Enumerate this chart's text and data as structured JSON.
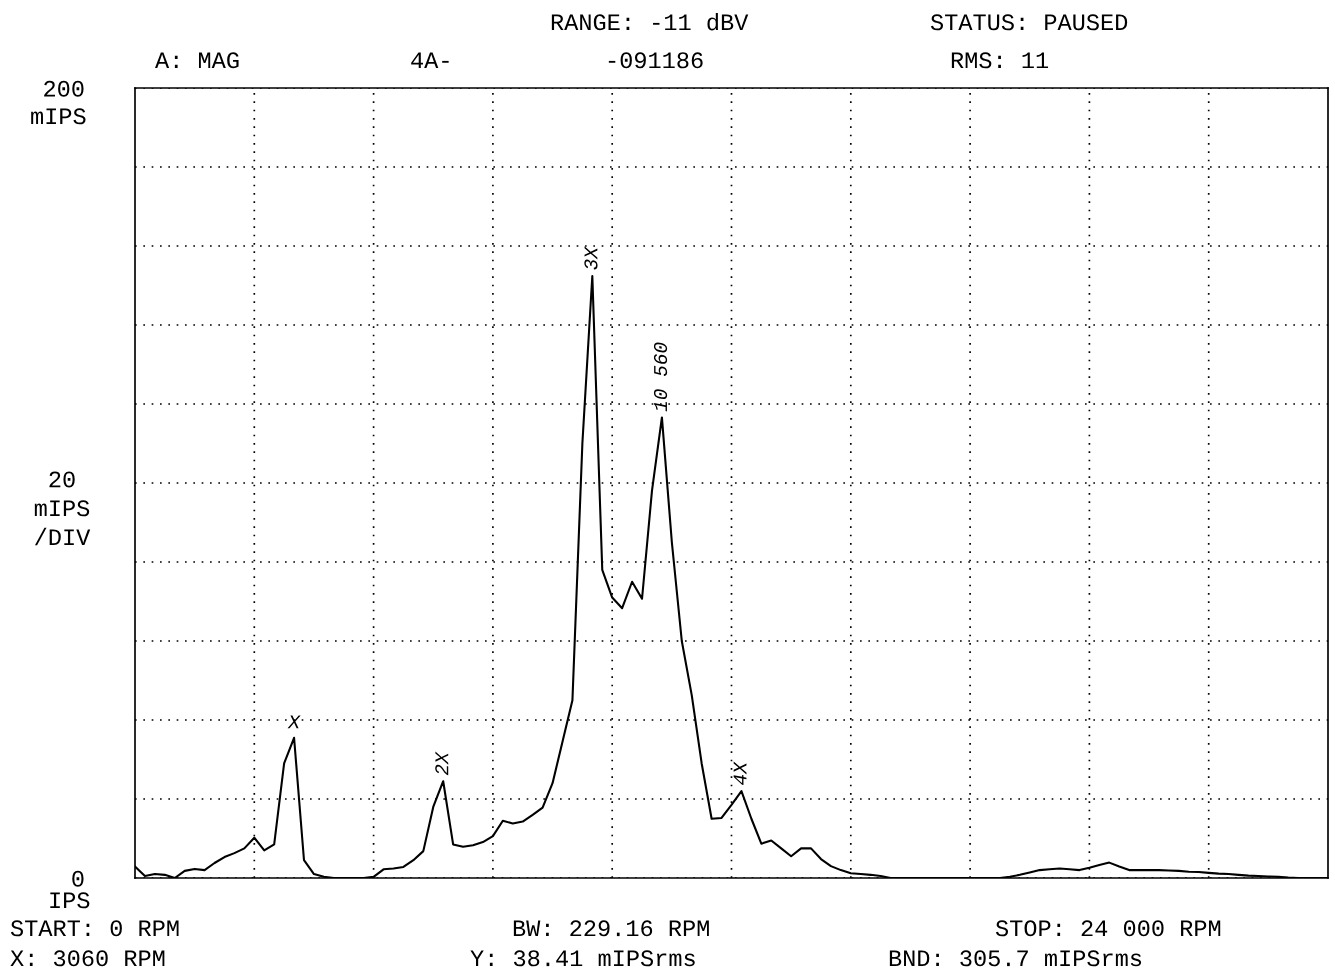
{
  "chart_data": {
    "type": "line",
    "ylabel": "20\nmIPS\n/DIV",
    "categories": [
      null,
      null,
      null,
      null,
      null,
      null,
      null,
      null,
      null,
      null,
      null,
      null,
      null,
      null,
      null,
      null,
      null,
      null,
      null,
      null,
      null,
      null,
      null,
      null,
      null,
      null,
      null,
      null,
      null,
      null,
      null,
      null,
      null,
      null,
      null,
      null,
      null,
      null,
      null,
      null,
      null,
      null,
      null,
      null,
      null,
      null,
      null,
      null,
      null,
      null,
      null,
      null,
      null,
      null,
      null,
      null,
      null,
      null,
      null,
      null,
      null,
      null,
      null,
      null,
      null,
      null,
      null,
      null,
      null,
      null,
      null,
      null,
      null,
      null,
      null,
      null,
      null,
      null,
      null,
      null,
      null,
      null,
      null,
      null,
      null,
      null,
      null,
      null,
      null,
      null,
      null,
      null,
      null,
      null,
      null,
      null,
      null,
      null,
      null,
      null,
      null,
      null,
      null,
      null,
      null,
      null,
      null,
      null,
      null,
      null,
      null,
      null,
      null,
      null,
      null,
      null,
      null,
      null,
      null,
      null,
      null
    ],
    "series": [
      {
        "color": "#000000",
        "values": [
          2.9,
          0.5,
          1.0,
          0.8,
          0,
          1.8,
          2.3,
          2.0,
          3.8,
          5.3,
          6.3,
          7.5,
          10.2,
          7.0,
          8.5,
          29,
          35.5,
          4.5,
          1.0,
          0.3,
          0,
          0,
          0,
          0,
          0.3,
          2.2,
          2.4,
          2.8,
          4.5,
          6.8,
          18,
          24.5,
          8.5,
          7.9,
          8.3,
          9.1,
          10.6,
          14.5,
          13.8,
          14.3,
          16,
          17.8,
          24,
          34.5,
          45,
          110,
          152.4,
          78,
          71,
          68.3,
          75,
          70.7,
          98,
          116.6,
          85,
          60,
          46.3,
          29,
          15,
          15.2,
          18.5,
          22.0,
          15,
          8.7,
          9.5,
          7.5,
          5.5,
          7.5,
          7.5,
          4.8,
          3.0,
          2.0,
          1.2,
          1.0,
          0.8,
          0.5,
          0,
          0,
          0,
          0,
          0,
          0,
          0,
          0,
          0,
          0,
          0,
          0,
          0.3,
          0.8,
          1.4,
          2.0,
          2.2,
          2.4,
          2.2,
          2.0,
          2.6,
          3.3,
          3.9,
          2.9,
          2.0,
          2.0,
          2.0,
          2.0,
          1.9,
          1.8,
          1.6,
          1.5,
          1.3,
          1.1,
          1.0,
          0.8,
          0.6,
          0.5,
          0.4,
          0.3,
          0.1,
          0,
          0,
          0,
          0
        ]
      }
    ],
    "ylim": [
      0,
      200
    ],
    "yticks": [
      {
        "value": 0,
        "label": "0"
      },
      {
        "value": 20,
        "label": null
      },
      {
        "value": 40,
        "label": null
      },
      {
        "value": 60,
        "label": null
      },
      {
        "value": 80,
        "label": null
      },
      {
        "value": 100,
        "label": null
      },
      {
        "value": 120,
        "label": null
      },
      {
        "value": 140,
        "label": null
      },
      {
        "value": 160,
        "label": null
      },
      {
        "value": 180,
        "label": null
      },
      {
        "value": 200,
        "label": "200"
      }
    ],
    "tick_labels": "y",
    "grid": true,
    "line_style": "solid",
    "marker": "none",
    "annotations": [
      "RANGE: -11 dBV",
      "STATUS: PAUSED",
      "A: MAG",
      "4A-",
      "-091186",
      "RMS: 11",
      "START: 0 RPM",
      "BW: 229.16 RPM",
      "STOP: 24 000 RPM",
      "X: 3060 RPM",
      "Y: 38.41 mIPSrms",
      "BND: 305.7 mIPSrms",
      "mIPS",
      "IPS",
      {
        "text": "X",
        "y": 35.5
      },
      {
        "text": "2X",
        "y": 24.5
      },
      {
        "text": "3X",
        "y": 152.4
      },
      {
        "text": "10 560",
        "y": 116.6
      },
      {
        "text": "4X",
        "y": 22.0
      }
    ]
  }
}
